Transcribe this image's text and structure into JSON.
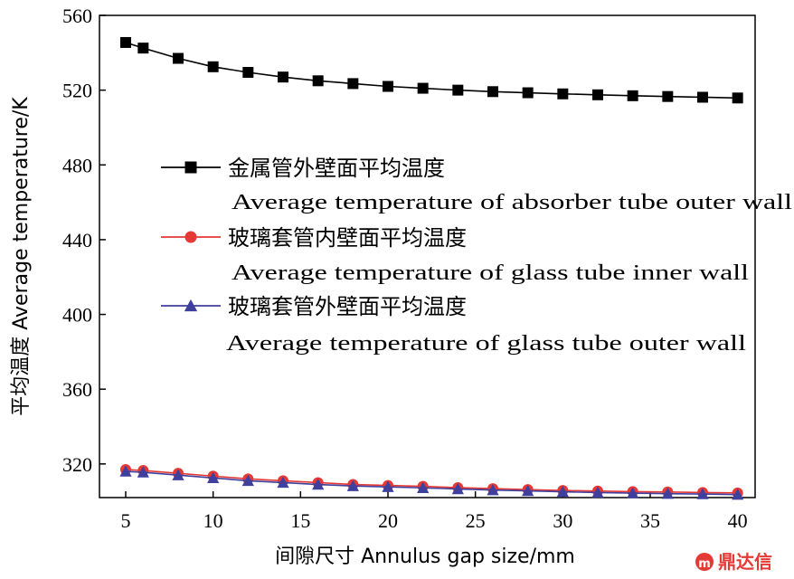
{
  "chart_data": {
    "type": "line",
    "x": [
      5,
      6,
      8,
      10,
      12,
      14,
      16,
      18,
      20,
      22,
      24,
      26,
      28,
      30,
      32,
      34,
      36,
      38,
      40
    ],
    "series": [
      {
        "name": "金属管外壁面平均温度",
        "name_en": "Average temperature of absorber tube outer wall",
        "color": "#000000",
        "marker": "square",
        "values": [
          545.5,
          542.5,
          537,
          532.5,
          529.5,
          527,
          525,
          523.5,
          522,
          521,
          520,
          519.2,
          518.6,
          518,
          517.5,
          517,
          516.6,
          516.2,
          515.8
        ]
      },
      {
        "name": "玻璃套管内壁面平均温度",
        "name_en": "Average temperature of glass tube inner wall",
        "color": "#e53935",
        "marker": "circle",
        "values": [
          317,
          316.5,
          315,
          313.5,
          312,
          311,
          310,
          309,
          308.5,
          308,
          307.3,
          306.8,
          306.3,
          305.8,
          305.5,
          305.2,
          305,
          304.7,
          304.5
        ]
      },
      {
        "name": "玻璃套管外壁面平均温度",
        "name_en": "Average temperature of glass tube outer wall",
        "color": "#3f3f9e",
        "marker": "triangle",
        "values": [
          316,
          315.5,
          314,
          312.5,
          311,
          310,
          309,
          308.2,
          307.7,
          307.2,
          306.6,
          306,
          305.6,
          305.1,
          304.7,
          304.4,
          304.1,
          303.9,
          303.6
        ]
      }
    ],
    "xlabel": "间隙尺寸 Annulus gap size/mm",
    "ylabel": "平均温度 Average temperature/K",
    "xlim": [
      3.5,
      41
    ],
    "ylim": [
      302,
      560
    ],
    "xticks": [
      5,
      10,
      15,
      20,
      25,
      30,
      35,
      40
    ],
    "yticks": [
      320,
      360,
      400,
      440,
      480,
      520,
      560
    ],
    "grid": false,
    "legend": "center-left"
  },
  "watermark": {
    "text": "鼎达信",
    "color": "#e53935"
  }
}
